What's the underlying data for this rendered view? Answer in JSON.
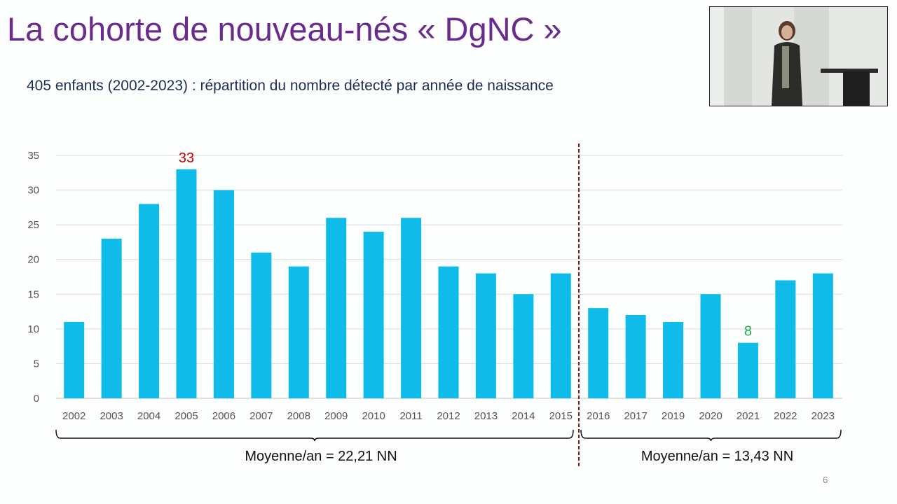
{
  "slide": {
    "title": "La cohorte de nouveau-nés « DgNC »",
    "subtitle": "405 enfants (2002-2023) : répartition du nombre détecté par année de naissance",
    "slide_number": "6"
  },
  "chart_data": {
    "type": "bar",
    "categories": [
      "2002",
      "2003",
      "2004",
      "2005",
      "2006",
      "2007",
      "2008",
      "2009",
      "2010",
      "2011",
      "2012",
      "2013",
      "2014",
      "2015",
      "2016",
      "2017",
      "2019",
      "2020",
      "2021",
      "2022",
      "2023"
    ],
    "values": [
      11,
      23,
      28,
      33,
      30,
      21,
      19,
      26,
      24,
      26,
      19,
      18,
      15,
      18,
      13,
      12,
      11,
      15,
      8,
      17,
      18
    ],
    "ylim": [
      0,
      35
    ],
    "yticks": [
      0,
      5,
      10,
      15,
      20,
      25,
      30,
      35
    ],
    "grid": true,
    "bar_color": "#0fbbe8",
    "data_labels": [
      {
        "category": "2005",
        "text": "33",
        "color": "#c00000"
      },
      {
        "category": "2021",
        "text": "8",
        "color": "#1fae4b"
      }
    ],
    "divider_after": "2015",
    "divider_color": "#a01010",
    "groups": [
      {
        "from": "2002",
        "to": "2015",
        "label": "Moyenne/an = 22,21 NN"
      },
      {
        "from": "2016",
        "to": "2023",
        "label": "Moyenne/an = 13,43 NN"
      }
    ]
  }
}
